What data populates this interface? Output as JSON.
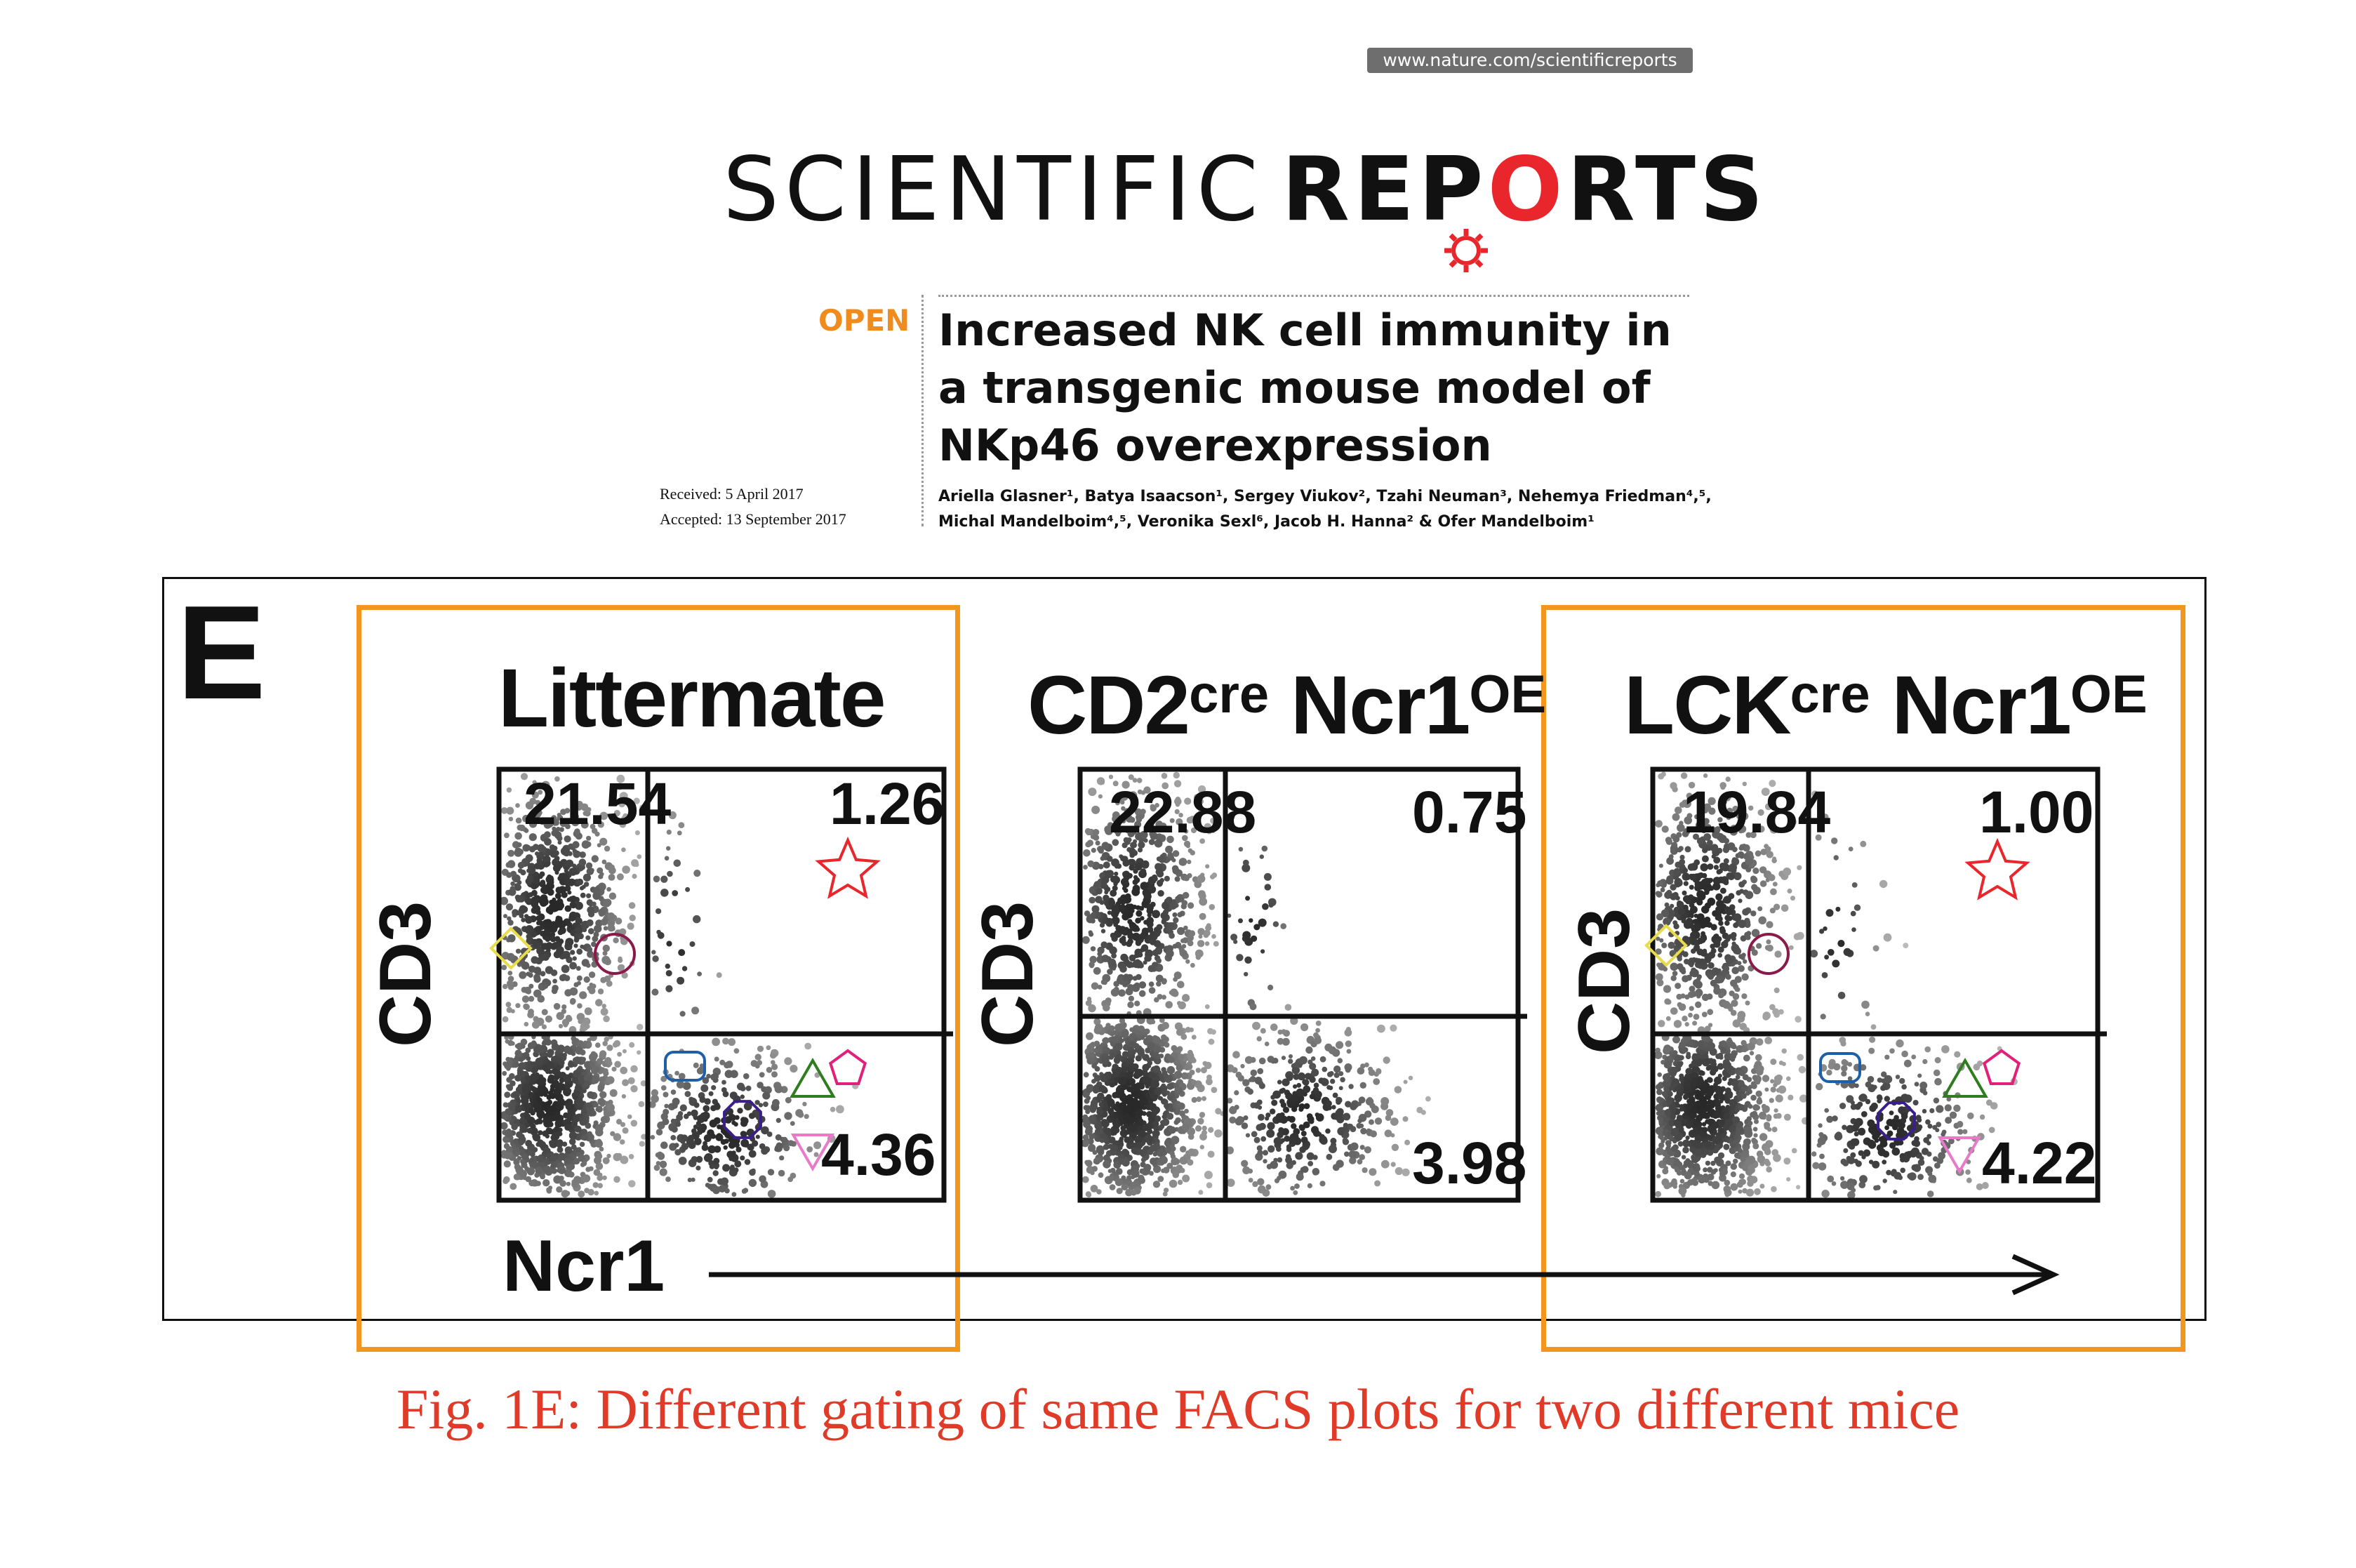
{
  "header": {
    "url": "www.nature.com/scientificreports",
    "logo_light": "SCIENTIFIC",
    "logo_bold_pre": "REP",
    "logo_gear_letter": "O",
    "logo_bold_post": "RTS",
    "open_label": "OPEN",
    "paper_title": "Increased NK cell immunity in a transgenic mouse model of NKp46 overexpression",
    "received": "Received: 5 April 2017",
    "accepted": "Accepted: 13 September 2017",
    "authors": "Ariella Glasner¹, Batya Isaacson¹, Sergey Viukov², Tzahi Neuman³, Nehemya Friedman⁴,⁵, Michal Mandelboim⁴,⁵, Veronika Sexl⁶, Jacob H. Hanna² & Ofer Mandelboim¹",
    "logo_colors": {
      "text": "#111111",
      "gear": "#e8262b"
    },
    "accent_color": "#f08b1d"
  },
  "figure": {
    "panel_letter": "E",
    "x_axis_label": "Ncr1",
    "panels": [
      {
        "title_main": "Littermate",
        "title_sup": "",
        "title_post": "",
        "y_label": "CD3",
        "q_ul": "21.54",
        "q_ur": "1.26",
        "q_lr": "4.36",
        "show_markers": true
      },
      {
        "title_main": "CD2",
        "title_sup": "cre",
        "title_post": " Ncr1",
        "title_sup2": "OE",
        "y_label": "CD3",
        "q_ul": "22.88",
        "q_ur": "0.75",
        "q_lr": "3.98",
        "show_markers": false
      },
      {
        "title_main": "LCK",
        "title_sup": "cre",
        "title_post": " Ncr1",
        "title_sup2": "OE",
        "y_label": "CD3",
        "q_ul": "19.84",
        "q_ur": "1.00",
        "q_lr": "4.22",
        "show_markers": true
      }
    ],
    "highlight_color": "#f2961d",
    "marker_colors": {
      "star": "#e8262b",
      "diamond": "#e8dc4a",
      "circle": "#8b1a4a",
      "rounded-rect": "#1e5fa8",
      "triangle-up": "#2e7d1e",
      "pentagon": "#e0207a",
      "octagon": "#3a1f8c",
      "triangle-down": "#e87ac8"
    }
  },
  "caption": "Fig. 1E: Different gating of same FACS plots for two different mice"
}
